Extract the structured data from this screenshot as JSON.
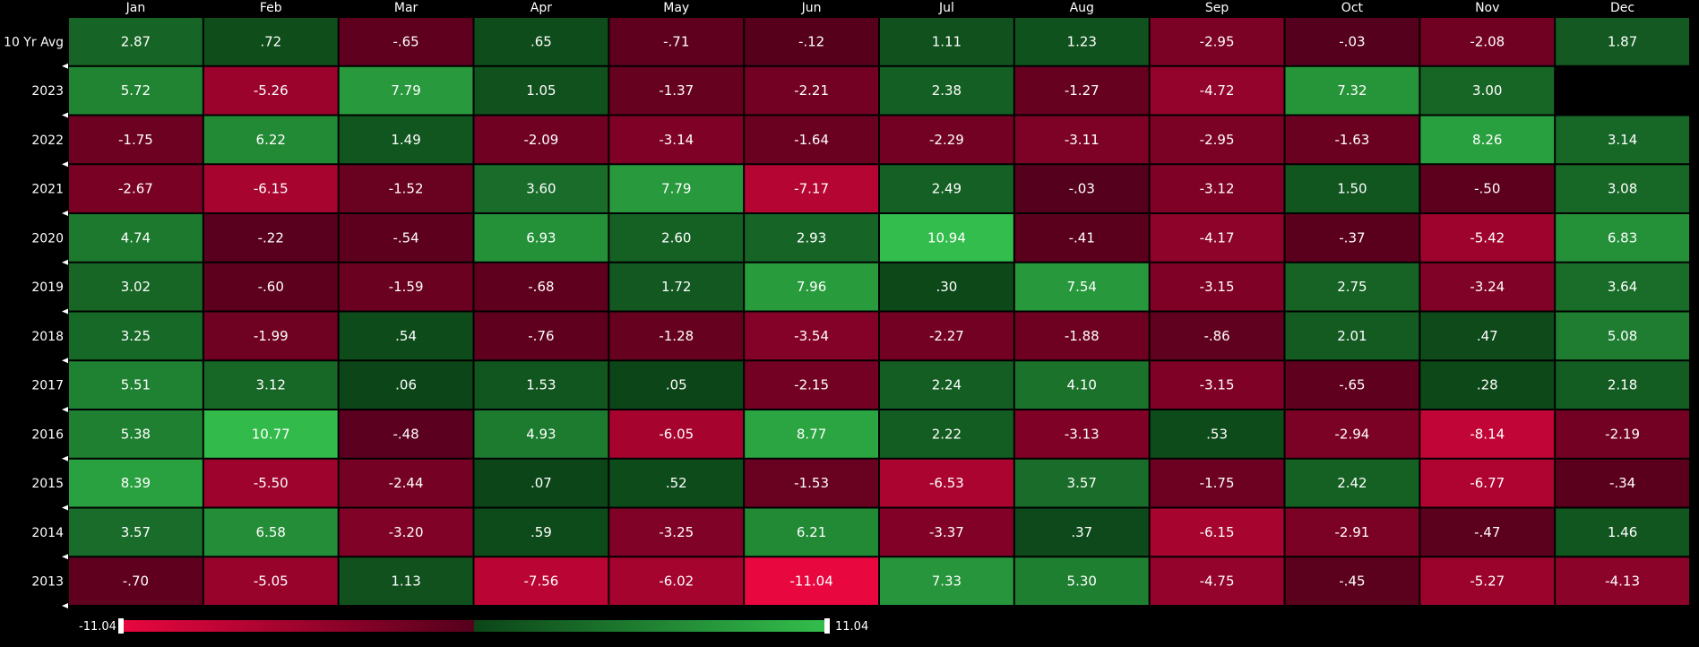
{
  "chart_data": {
    "type": "heatmap",
    "columns": [
      "Jan",
      "Feb",
      "Mar",
      "Apr",
      "May",
      "Jun",
      "Jul",
      "Aug",
      "Sep",
      "Oct",
      "Nov",
      "Dec"
    ],
    "rows": [
      {
        "label": "10 Yr Avg",
        "values": [
          "2.87",
          ".72",
          "-.65",
          ".65",
          "-.71",
          "-.12",
          "1.11",
          "1.23",
          "-2.95",
          "-.03",
          "-2.08",
          "1.87"
        ]
      },
      {
        "label": "2023",
        "values": [
          "5.72",
          "-5.26",
          "7.79",
          "1.05",
          "-1.37",
          "-2.21",
          "2.38",
          "-1.27",
          "-4.72",
          "7.32",
          "3.00",
          null
        ]
      },
      {
        "label": "2022",
        "values": [
          "-1.75",
          "6.22",
          "1.49",
          "-2.09",
          "-3.14",
          "-1.64",
          "-2.29",
          "-3.11",
          "-2.95",
          "-1.63",
          "8.26",
          "3.14"
        ]
      },
      {
        "label": "2021",
        "values": [
          "-2.67",
          "-6.15",
          "-1.52",
          "3.60",
          "7.79",
          "-7.17",
          "2.49",
          "-.03",
          "-3.12",
          "1.50",
          "-.50",
          "3.08"
        ]
      },
      {
        "label": "2020",
        "values": [
          "4.74",
          "-.22",
          "-.54",
          "6.93",
          "2.60",
          "2.93",
          "10.94",
          "-.41",
          "-4.17",
          "-.37",
          "-5.42",
          "6.83"
        ]
      },
      {
        "label": "2019",
        "values": [
          "3.02",
          "-.60",
          "-1.59",
          "-.68",
          "1.72",
          "7.96",
          ".30",
          "7.54",
          "-3.15",
          "2.75",
          "-3.24",
          "3.64"
        ]
      },
      {
        "label": "2018",
        "values": [
          "3.25",
          "-1.99",
          ".54",
          "-.76",
          "-1.28",
          "-3.54",
          "-2.27",
          "-1.88",
          "-.86",
          "2.01",
          ".47",
          "5.08"
        ]
      },
      {
        "label": "2017",
        "values": [
          "5.51",
          "3.12",
          ".06",
          "1.53",
          ".05",
          "-2.15",
          "2.24",
          "4.10",
          "-3.15",
          "-.65",
          ".28",
          "2.18"
        ]
      },
      {
        "label": "2016",
        "values": [
          "5.38",
          "10.77",
          "-.48",
          "4.93",
          "-6.05",
          "8.77",
          "2.22",
          "-3.13",
          ".53",
          "-2.94",
          "-8.14",
          "-2.19"
        ]
      },
      {
        "label": "2015",
        "values": [
          "8.39",
          "-5.50",
          "-2.44",
          ".07",
          ".52",
          "-1.53",
          "-6.53",
          "3.57",
          "-1.75",
          "2.42",
          "-6.77",
          "-.34"
        ]
      },
      {
        "label": "2014",
        "values": [
          "3.57",
          "6.58",
          "-3.20",
          ".59",
          "-3.25",
          "6.21",
          "-3.37",
          ".37",
          "-6.15",
          "-2.91",
          "-.47",
          "1.46"
        ]
      },
      {
        "label": "2013",
        "values": [
          "-.70",
          "-5.05",
          "1.13",
          "-7.56",
          "-6.02",
          "-11.04",
          "7.33",
          "5.30",
          "-4.75",
          "-.45",
          "-5.27",
          "-4.13"
        ]
      }
    ],
    "color_scale": {
      "min": -11.04,
      "max": 11.04,
      "min_label": "-11.04",
      "max_label": "11.04",
      "negative_strong": "#e8073f",
      "negative_weak": "#55001c",
      "positive_weak": "#0c4518",
      "positive_strong": "#33be4c"
    },
    "background": "#000000",
    "grid_line_color": "#000000"
  }
}
